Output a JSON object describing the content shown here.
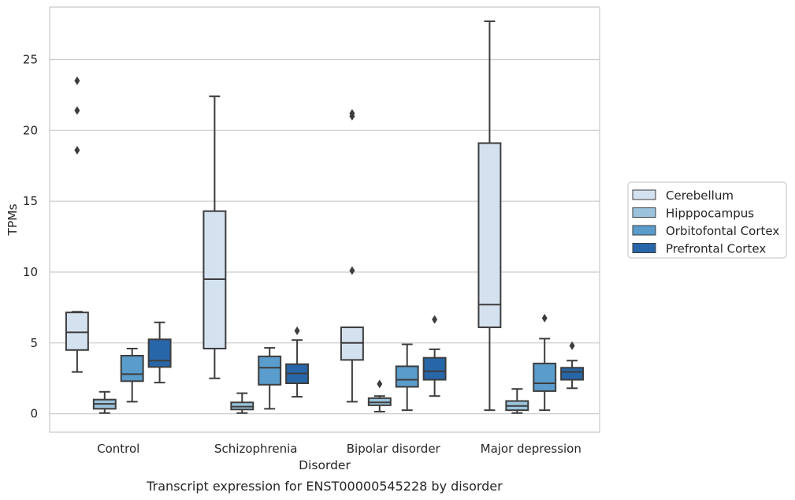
{
  "chart_data": {
    "type": "box",
    "title": "Transcript expression for ENST00000545228 by disorder",
    "xlabel": "Disorder",
    "ylabel": "TPMs",
    "ylim": [
      -1.3,
      28.7
    ],
    "yticks": [
      0,
      5,
      10,
      15,
      20,
      25
    ],
    "grid": true,
    "legend_position": "right",
    "categories": [
      "Control",
      "Schizophrenia",
      "Bipolar disorder",
      "Major depression"
    ],
    "series": [
      {
        "name": "Cerebellum",
        "color": "#d4e2f0",
        "boxes": [
          {
            "whislo": 2.95,
            "q1": 4.5,
            "med": 5.75,
            "q3": 7.15,
            "whishi": 7.2,
            "fliers": [
              18.6,
              21.4,
              23.5
            ]
          },
          {
            "whislo": 2.5,
            "q1": 4.6,
            "med": 9.5,
            "q3": 14.3,
            "whishi": 22.4,
            "fliers": []
          },
          {
            "whislo": 0.85,
            "q1": 3.8,
            "med": 5.0,
            "q3": 6.1,
            "whishi": 6.1,
            "fliers": [
              10.1,
              21.0,
              21.2
            ]
          },
          {
            "whislo": 0.25,
            "q1": 6.1,
            "med": 7.7,
            "q3": 19.1,
            "whishi": 27.7,
            "fliers": []
          }
        ]
      },
      {
        "name": "Hipppocampus",
        "color": "#9bc4dc",
        "boxes": [
          {
            "whislo": 0.05,
            "q1": 0.35,
            "med": 0.7,
            "q3": 1.0,
            "whishi": 1.55,
            "fliers": []
          },
          {
            "whislo": 0.05,
            "q1": 0.3,
            "med": 0.5,
            "q3": 0.8,
            "whishi": 1.45,
            "fliers": []
          },
          {
            "whislo": 0.15,
            "q1": 0.6,
            "med": 0.8,
            "q3": 1.1,
            "whishi": 1.25,
            "fliers": [
              2.1
            ]
          },
          {
            "whislo": 0.05,
            "q1": 0.25,
            "med": 0.55,
            "q3": 0.9,
            "whishi": 1.75,
            "fliers": []
          }
        ]
      },
      {
        "name": "Orbitofontal Cortex",
        "color": "#5a9ccb",
        "boxes": [
          {
            "whislo": 0.85,
            "q1": 2.3,
            "med": 2.8,
            "q3": 4.1,
            "whishi": 4.6,
            "fliers": []
          },
          {
            "whislo": 0.35,
            "q1": 2.05,
            "med": 3.25,
            "q3": 4.05,
            "whishi": 4.65,
            "fliers": []
          },
          {
            "whislo": 0.25,
            "q1": 1.9,
            "med": 2.4,
            "q3": 3.35,
            "whishi": 4.9,
            "fliers": []
          },
          {
            "whislo": 0.25,
            "q1": 1.6,
            "med": 2.15,
            "q3": 3.55,
            "whishi": 5.3,
            "fliers": [
              6.75
            ]
          }
        ]
      },
      {
        "name": "Prefrontal Cortex",
        "color": "#2766a8",
        "boxes": [
          {
            "whislo": 2.2,
            "q1": 3.3,
            "med": 3.75,
            "q3": 5.25,
            "whishi": 6.45,
            "fliers": []
          },
          {
            "whislo": 1.2,
            "q1": 2.15,
            "med": 2.85,
            "q3": 3.5,
            "whishi": 5.2,
            "fliers": [
              5.85
            ]
          },
          {
            "whislo": 1.25,
            "q1": 2.4,
            "med": 3.0,
            "q3": 3.95,
            "whishi": 4.55,
            "fliers": [
              6.65
            ]
          },
          {
            "whislo": 1.8,
            "q1": 2.4,
            "med": 2.95,
            "q3": 3.25,
            "whishi": 3.75,
            "fliers": [
              4.8
            ]
          }
        ]
      }
    ]
  }
}
